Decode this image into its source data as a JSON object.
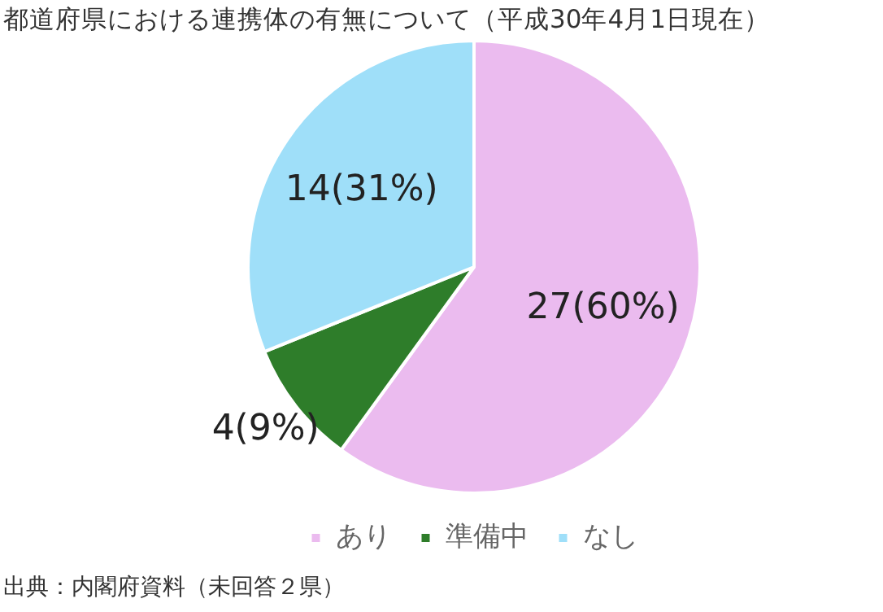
{
  "chart_data": {
    "type": "pie",
    "title": "都道府県における連携体の有無について（平成30年4月1日現在）",
    "categories": [
      "あり",
      "準備中",
      "なし"
    ],
    "values": [
      27,
      4,
      14
    ],
    "colors": [
      "#ebbbef",
      "#2e7d2a",
      "#9fdff9"
    ],
    "value_labels": [
      "27(60%)",
      "4(9%)",
      "14(31%)"
    ],
    "legend": "bottom",
    "annotations": [
      "出典：内閣府資料（未回答２県）"
    ]
  }
}
